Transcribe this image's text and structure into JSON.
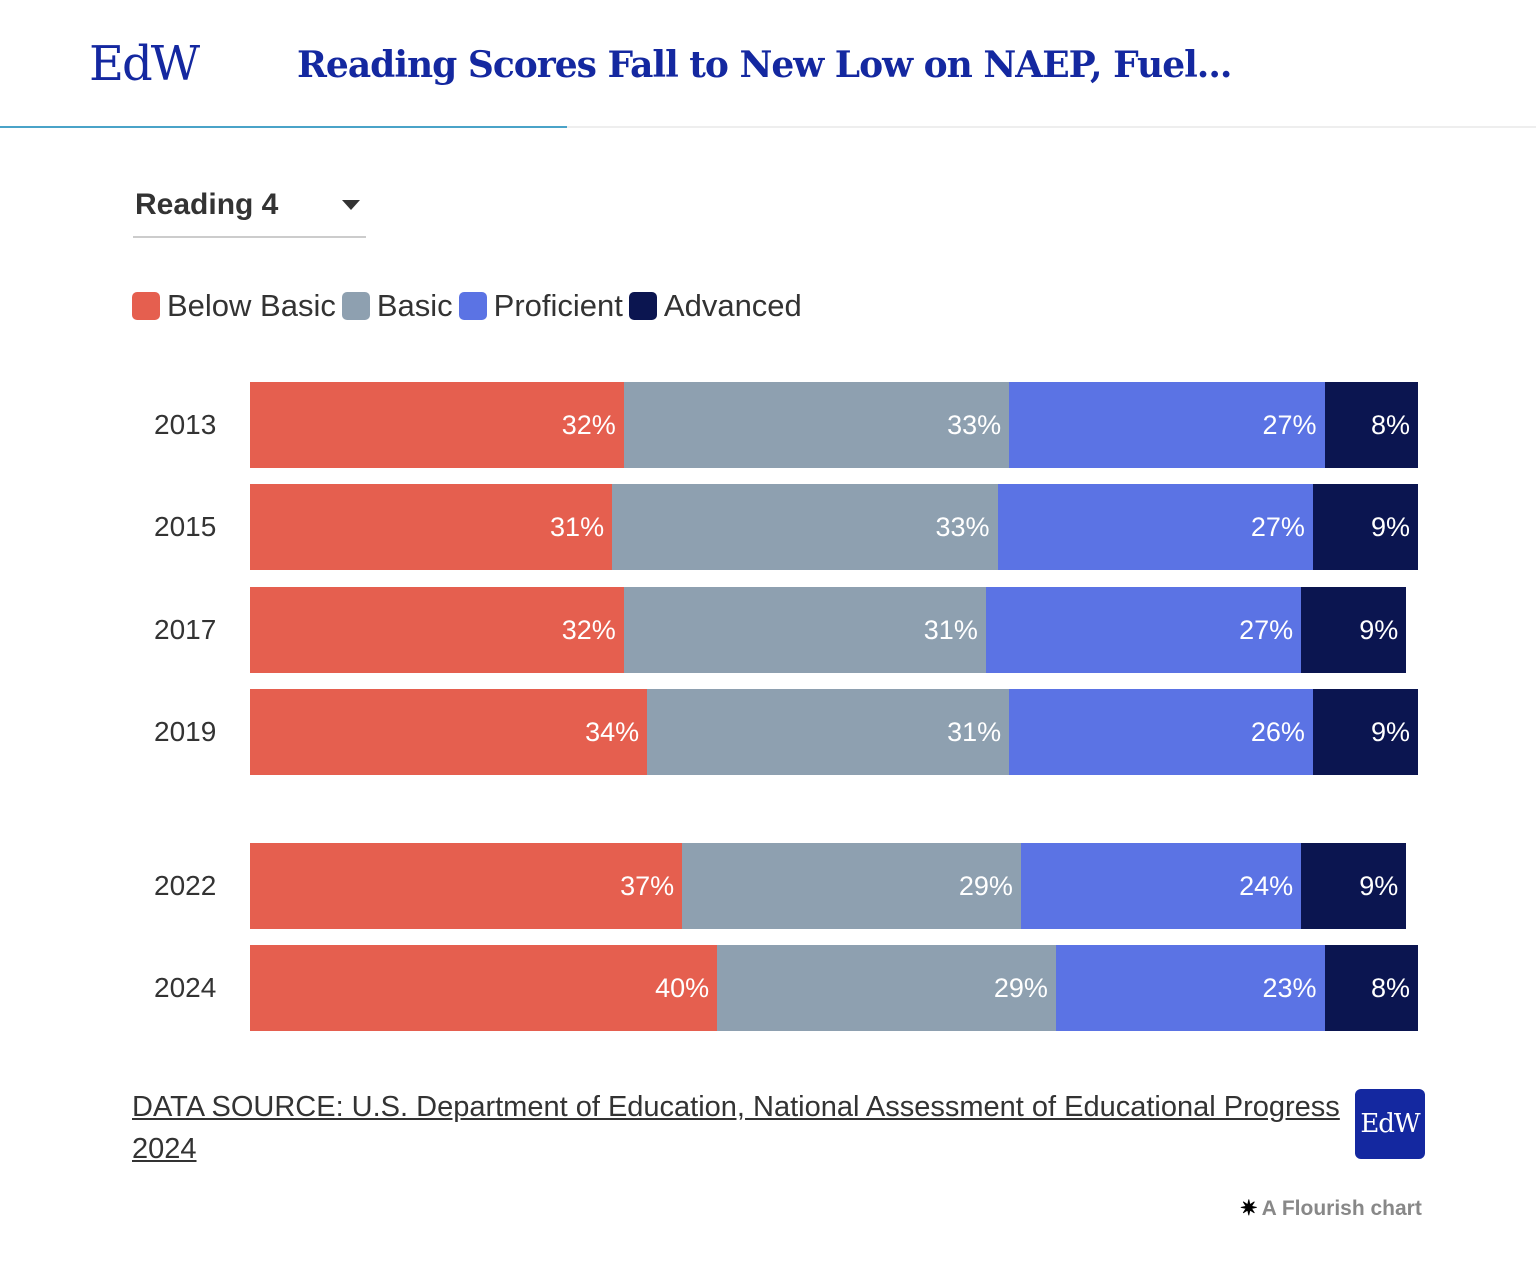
{
  "header": {
    "logo": "EdW",
    "title": "Reading Scores Fall to New Low on NAEP, Fuel..."
  },
  "dropdown": {
    "selected": "Reading 4"
  },
  "chart_data": {
    "type": "bar",
    "orientation": "horizontal",
    "stacked": true,
    "categories": [
      "2013",
      "2015",
      "2017",
      "2019",
      "2022",
      "2024"
    ],
    "series": [
      {
        "name": "Below Basic",
        "color": "#e55f4f",
        "values": [
          32,
          31,
          32,
          34,
          37,
          40
        ]
      },
      {
        "name": "Basic",
        "color": "#8ea0b0",
        "values": [
          33,
          33,
          31,
          31,
          29,
          29
        ]
      },
      {
        "name": "Proficient",
        "color": "#5b73e4",
        "values": [
          27,
          27,
          27,
          26,
          24,
          23
        ]
      },
      {
        "name": "Advanced",
        "color": "#0b1550",
        "values": [
          8,
          9,
          9,
          9,
          9,
          8
        ]
      }
    ],
    "legend": "top-left",
    "unit": "%"
  },
  "footer": {
    "source": "DATA SOURCE: U.S. Department of Education, National Assessment of Educational Progress 2024",
    "badge": "EdW",
    "flourish_icon": "✷",
    "flourish": "A Flourish chart"
  }
}
